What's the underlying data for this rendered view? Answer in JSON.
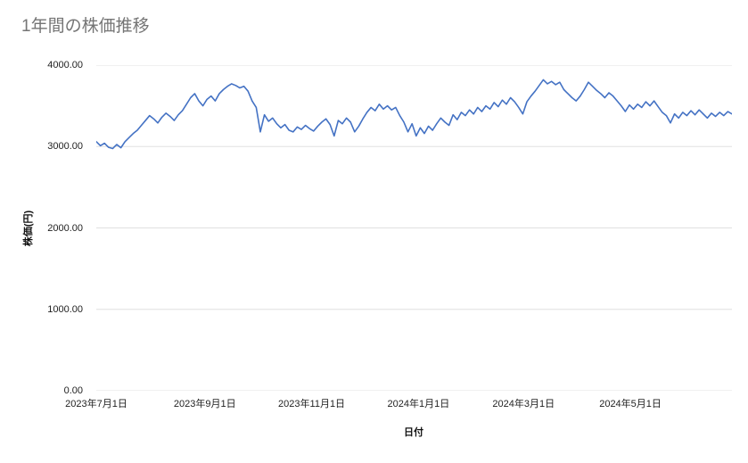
{
  "page": {
    "title": "1年間の株価推移"
  },
  "colors": {
    "line": "#4472c4",
    "grid": "#e0e0e0",
    "title": "#757575",
    "tick_text": "#222222"
  },
  "chart_data": {
    "type": "line",
    "title": "1年間の株価推移",
    "xlabel": "日付",
    "ylabel": "株価(円)",
    "ylim": [
      0,
      4000
    ],
    "grid": true,
    "legend": "none",
    "y_ticks": [
      {
        "value": 0,
        "label": "0.00"
      },
      {
        "value": 1000,
        "label": "1000.00"
      },
      {
        "value": 2000,
        "label": "2000.00"
      },
      {
        "value": 3000,
        "label": "3000.00"
      },
      {
        "value": 4000,
        "label": "4000.00"
      }
    ],
    "x_ticks": [
      {
        "pos": 0.0,
        "label": "2023年7月1日"
      },
      {
        "pos": 0.1708,
        "label": "2023年9月1日"
      },
      {
        "pos": 0.3388,
        "label": "2023年11月1日"
      },
      {
        "pos": 0.5069,
        "label": "2024年1月1日"
      },
      {
        "pos": 0.6722,
        "label": "2024年3月1日"
      },
      {
        "pos": 0.8402,
        "label": "2024年5月1日"
      }
    ],
    "x_range": {
      "start": "2023年7月1日",
      "end": "2024年6月末",
      "unit": "日"
    },
    "series": [
      {
        "name": "株価",
        "color": "#4472c4",
        "values": [
          3060,
          3010,
          3040,
          2990,
          2975,
          3025,
          2985,
          3060,
          3110,
          3160,
          3200,
          3260,
          3320,
          3380,
          3340,
          3290,
          3360,
          3410,
          3370,
          3320,
          3390,
          3440,
          3520,
          3600,
          3650,
          3560,
          3500,
          3580,
          3620,
          3560,
          3650,
          3700,
          3740,
          3770,
          3750,
          3720,
          3740,
          3680,
          3560,
          3480,
          3180,
          3390,
          3310,
          3350,
          3280,
          3230,
          3270,
          3200,
          3180,
          3240,
          3210,
          3260,
          3220,
          3190,
          3250,
          3300,
          3340,
          3270,
          3130,
          3320,
          3280,
          3350,
          3300,
          3180,
          3250,
          3340,
          3420,
          3480,
          3440,
          3520,
          3460,
          3500,
          3450,
          3480,
          3380,
          3300,
          3180,
          3280,
          3130,
          3230,
          3160,
          3250,
          3200,
          3280,
          3350,
          3300,
          3260,
          3390,
          3330,
          3420,
          3380,
          3450,
          3400,
          3480,
          3430,
          3500,
          3460,
          3540,
          3490,
          3570,
          3520,
          3600,
          3550,
          3480,
          3400,
          3550,
          3620,
          3680,
          3750,
          3820,
          3770,
          3800,
          3760,
          3790,
          3700,
          3650,
          3600,
          3560,
          3620,
          3700,
          3790,
          3740,
          3690,
          3650,
          3600,
          3660,
          3620,
          3560,
          3500,
          3430,
          3510,
          3460,
          3520,
          3480,
          3550,
          3500,
          3560,
          3490,
          3420,
          3380,
          3290,
          3400,
          3350,
          3420,
          3380,
          3440,
          3390,
          3450,
          3400,
          3350,
          3410,
          3370,
          3420,
          3380,
          3430,
          3400
        ]
      }
    ]
  }
}
